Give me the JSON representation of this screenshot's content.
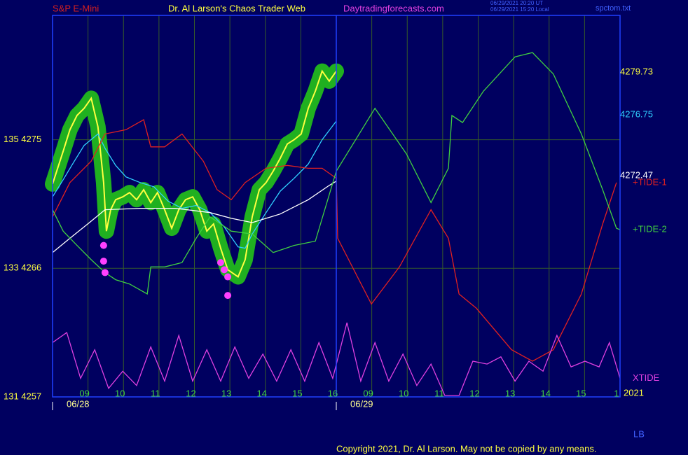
{
  "chart_data": {
    "type": "line",
    "title": "S&P E-Mini",
    "subtitle": "Dr. Al Larson's Chaos Trader Web",
    "site": "Daytradingforecasts.com",
    "stamps": [
      "06/29/2021 20:20 UT",
      "06/29/2021 15:20 Local"
    ],
    "file": "spctom.txt",
    "footer": "Copyright 2021, Dr. Al Larson. May not be copied by any means.",
    "corner_mark": "LB",
    "year": "2021",
    "grid": true,
    "xlim": [
      0,
      16
    ],
    "ylim": [
      4257,
      4283.7
    ],
    "yticks": [
      {
        "value": 4257,
        "label": "131  4257"
      },
      {
        "value": 4266,
        "label": "133  4266"
      },
      {
        "value": 4275,
        "label": "135  4275"
      }
    ],
    "xticks": [
      {
        "value": 1,
        "label": "09"
      },
      {
        "value": 2,
        "label": "10"
      },
      {
        "value": 3,
        "label": "11"
      },
      {
        "value": 4,
        "label": "12"
      },
      {
        "value": 5,
        "label": "13"
      },
      {
        "value": 6,
        "label": "14"
      },
      {
        "value": 7,
        "label": "15"
      },
      {
        "value": 8,
        "label": "16"
      },
      {
        "value": 9,
        "label": "09"
      },
      {
        "value": 10,
        "label": "10"
      },
      {
        "value": 11,
        "label": "11"
      },
      {
        "value": 12,
        "label": "12"
      },
      {
        "value": 13,
        "label": "13"
      },
      {
        "value": 14,
        "label": "14"
      },
      {
        "value": 15,
        "label": "15"
      },
      {
        "value": 16,
        "label": "1"
      }
    ],
    "dates": [
      {
        "value": 0,
        "label": "06/28"
      },
      {
        "value": 8,
        "label": "06/29"
      }
    ],
    "series": [
      {
        "color": "#ffff40",
        "halo": "#20b020",
        "last": 4279.73,
        "x": [
          0,
          0.3,
          0.49,
          0.69,
          0.89,
          1.09,
          1.28,
          1.44,
          1.52,
          1.64,
          1.78,
          1.98,
          2.17,
          2.37,
          2.57,
          2.77,
          2.96,
          3.16,
          3.36,
          3.56,
          3.75,
          3.95,
          4.15,
          4.35,
          4.54,
          4.74,
          4.94,
          5.23,
          5.43,
          5.63,
          5.83,
          6.02,
          6.22,
          6.42,
          6.62,
          6.81,
          7.01,
          7.21,
          7.41,
          7.6,
          7.8,
          8.0
        ],
        "values": [
          4271.9,
          4274.2,
          4275.7,
          4276.7,
          4277.2,
          4277.9,
          4275.9,
          4272.0,
          4268.6,
          4270.1,
          4270.8,
          4271.0,
          4271.3,
          4270.8,
          4271.5,
          4270.6,
          4271.3,
          4270.1,
          4268.8,
          4270.1,
          4270.8,
          4271.0,
          4270.1,
          4268.6,
          4269.1,
          4267.4,
          4265.9,
          4265.4,
          4266.6,
          4269.6,
          4271.5,
          4272.0,
          4272.8,
          4273.7,
          4274.7,
          4275.0,
          4275.4,
          4277.2,
          4278.4,
          4279.8,
          4279.1,
          4279.8
        ]
      },
      {
        "color": "#30d0ff",
        "last": 4276.75,
        "x": [
          0,
          0.3,
          0.59,
          0.89,
          1.28,
          1.48,
          1.78,
          2.07,
          2.47,
          2.86,
          3.26,
          3.65,
          4.05,
          4.44,
          4.84,
          5.23,
          5.43,
          5.63,
          6.02,
          6.42,
          6.81,
          7.21,
          7.6,
          8.0
        ],
        "values": [
          4271.0,
          4272.2,
          4273.4,
          4274.6,
          4275.4,
          4274.4,
          4273.2,
          4272.4,
          4272.0,
          4271.7,
          4270.7,
          4270.2,
          4270.4,
          4269.9,
          4268.9,
          4267.5,
          4267.4,
          4268.4,
          4269.9,
          4271.4,
          4272.3,
          4273.3,
          4275.0,
          4276.3
        ]
      },
      {
        "color": "#ffffff",
        "last": 4272.47,
        "x": [
          0,
          0.49,
          1.09,
          1.48,
          2.47,
          3.46,
          4.44,
          5.04,
          5.63,
          6.42,
          7.21,
          7.8,
          8.0
        ],
        "values": [
          4267.1,
          4268.1,
          4269.3,
          4270.1,
          4270.2,
          4270.2,
          4269.9,
          4269.5,
          4269.2,
          4269.8,
          4270.8,
          4271.8,
          4272.1
        ]
      },
      {
        "name": "+TIDE-1",
        "color": "#e02020",
        "x": [
          0,
          0.49,
          1.09,
          1.48,
          2.07,
          2.57,
          2.77,
          3.16,
          3.65,
          4.25,
          4.64,
          5.04,
          5.43,
          6.02,
          6.62,
          7.21,
          7.6,
          8.0,
          8.04,
          8.99,
          9.78,
          10.67,
          11.16,
          11.46,
          11.95,
          12.94,
          13.53,
          14.12,
          14.91,
          15.51,
          15.9
        ],
        "values": [
          4269.6,
          4272.0,
          4273.5,
          4275.4,
          4275.7,
          4276.4,
          4274.5,
          4274.5,
          4275.4,
          4273.5,
          4271.5,
          4270.8,
          4272.0,
          4273.0,
          4273.2,
          4273.0,
          4273.0,
          4272.3,
          4268.1,
          4263.5,
          4266.1,
          4270.1,
          4268.1,
          4264.2,
          4263.2,
          4260.3,
          4259.5,
          4260.3,
          4264.2,
          4269.1,
          4272.0
        ]
      },
      {
        "name": "+TIDE-2",
        "color": "#40d040",
        "x": [
          0,
          0.3,
          0.69,
          1.09,
          1.48,
          1.78,
          2.17,
          2.67,
          2.77,
          3.16,
          3.65,
          4.05,
          4.44,
          5.04,
          5.63,
          6.22,
          6.81,
          7.41,
          8.0,
          9.09,
          9.98,
          10.67,
          11.16,
          11.26,
          11.56,
          12.15,
          13.04,
          13.53,
          14.12,
          14.91,
          15.51,
          15.9,
          16.0
        ],
        "values": [
          4270.1,
          4268.6,
          4267.6,
          4266.6,
          4265.7,
          4265.2,
          4264.9,
          4264.2,
          4266.1,
          4266.1,
          4266.4,
          4268.1,
          4269.6,
          4268.6,
          4268.4,
          4267.1,
          4267.6,
          4267.9,
          4272.8,
          4277.2,
          4274.0,
          4270.6,
          4273.0,
          4276.7,
          4276.2,
          4278.4,
          4280.8,
          4281.1,
          4279.6,
          4275.4,
          4271.5,
          4268.8,
          4268.7
        ]
      },
      {
        "name": "XTIDE",
        "color": "#e040e0",
        "x": [
          0,
          0.4,
          0.79,
          1.19,
          1.58,
          1.98,
          2.37,
          2.77,
          3.16,
          3.56,
          3.95,
          4.35,
          4.74,
          5.14,
          5.53,
          5.93,
          6.32,
          6.72,
          7.11,
          7.51,
          7.9,
          8.3,
          8.69,
          9.09,
          9.48,
          9.88,
          10.27,
          10.67,
          11.06,
          11.46,
          11.85,
          12.25,
          12.64,
          13.04,
          13.43,
          13.83,
          14.22,
          14.62,
          15.01,
          15.41,
          15.7,
          16.0
        ],
        "values": [
          4260.8,
          4261.5,
          4258.3,
          4260.3,
          4257.6,
          4258.8,
          4257.8,
          4260.5,
          4258.1,
          4261.3,
          4258.1,
          4260.3,
          4258.1,
          4260.5,
          4258.3,
          4260.0,
          4258.1,
          4260.3,
          4258.1,
          4260.8,
          4258.3,
          4262.2,
          4258.1,
          4260.8,
          4258.1,
          4260.0,
          4257.8,
          4259.3,
          4257.1,
          4257.1,
          4259.5,
          4259.3,
          4259.8,
          4258.1,
          4259.5,
          4258.8,
          4261.3,
          4259.1,
          4259.5,
          4259.1,
          4260.8,
          4258.3
        ]
      },
      {
        "type": "scatter",
        "color": "#ff40ff",
        "x": [
          1.44,
          1.44,
          1.48,
          4.74,
          4.84,
          4.94,
          4.94
        ],
        "values": [
          4267.6,
          4266.5,
          4265.7,
          4266.4,
          4265.9,
          4265.4,
          4264.1
        ]
      }
    ]
  }
}
